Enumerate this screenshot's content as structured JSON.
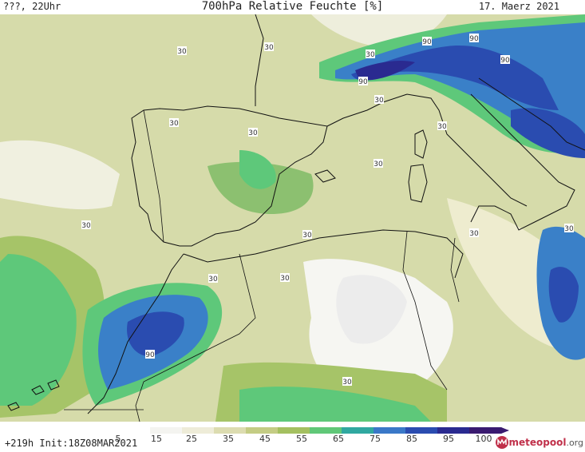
{
  "header": {
    "left": "???, 22Uhr",
    "title": "700hPa Relative Feuchte [%]",
    "date": "17. Maerz 2021"
  },
  "footer": {
    "init": "+219h  Init:18Z08MAR2021",
    "logo_name": "meteopool",
    "logo_suffix": ".org",
    "logo_icon": "meteopool-logo-icon"
  },
  "legend": {
    "ticks": [
      "5",
      "15",
      "25",
      "35",
      "45",
      "55",
      "65",
      "75",
      "85",
      "95",
      "100"
    ],
    "colors": [
      "#ffffff",
      "#f4f4f0",
      "#eeecd8",
      "#dcdcb0",
      "#c4cc84",
      "#a4c060",
      "#60c878",
      "#30a8a0",
      "#3a78c8",
      "#2a4cb0",
      "#2a2a90",
      "#3a1a70"
    ]
  },
  "contour_labels": [
    "30",
    "30",
    "90",
    "90",
    "90",
    "90",
    "30",
    "30",
    "30",
    "30",
    "30",
    "30",
    "30",
    "30",
    "30",
    "30",
    "90",
    "30",
    "30",
    "30"
  ]
}
